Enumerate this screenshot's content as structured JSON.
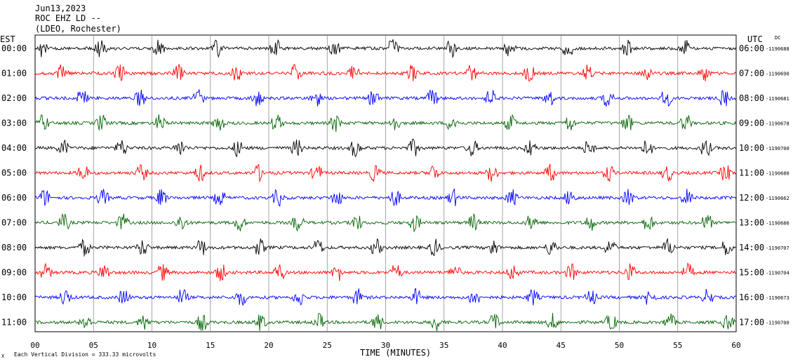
{
  "header": {
    "date": "Jun13,2023",
    "channel": "ROC EHZ LD --",
    "network": "(LDEO, Rochester)"
  },
  "left_zone": "EST",
  "right_zone": "UTC",
  "dc_label": "DC",
  "footer_note": "Each Vertical Division = 333.33 microvolts",
  "colors": {
    "black": "#000000",
    "red": "#ff0000",
    "blue": "#0000ff",
    "green": "#006400",
    "grid": "#808080"
  },
  "chart_data": {
    "type": "line",
    "xlabel": "TIME (MINUTES)",
    "xlim": [
      0,
      60
    ],
    "x_ticks": [
      "00",
      "05",
      "10",
      "15",
      "20",
      "25",
      "30",
      "35",
      "40",
      "45",
      "50",
      "55",
      "60"
    ],
    "rows": [
      {
        "est": "00:00",
        "utc": "06:00",
        "dc": "-1190688",
        "color": "black"
      },
      {
        "est": "01:00",
        "utc": "07:00",
        "dc": "-1190690",
        "color": "red"
      },
      {
        "est": "02:00",
        "utc": "08:00",
        "dc": "-1190681",
        "color": "blue"
      },
      {
        "est": "03:00",
        "utc": "09:00",
        "dc": "-1190678",
        "color": "green"
      },
      {
        "est": "04:00",
        "utc": "10:00",
        "dc": "-1190700",
        "color": "black"
      },
      {
        "est": "05:00",
        "utc": "11:00",
        "dc": "-1190680",
        "color": "red"
      },
      {
        "est": "06:00",
        "utc": "12:00",
        "dc": "-1190662",
        "color": "blue"
      },
      {
        "est": "07:00",
        "utc": "13:00",
        "dc": "-1190686",
        "color": "green"
      },
      {
        "est": "08:00",
        "utc": "14:00",
        "dc": "-1190707",
        "color": "black"
      },
      {
        "est": "09:00",
        "utc": "15:00",
        "dc": "-1190704",
        "color": "red"
      },
      {
        "est": "10:00",
        "utc": "16:00",
        "dc": "-1190673",
        "color": "blue"
      },
      {
        "est": "11:00",
        "utc": "17:00",
        "dc": "-1190700",
        "color": "green"
      }
    ]
  }
}
